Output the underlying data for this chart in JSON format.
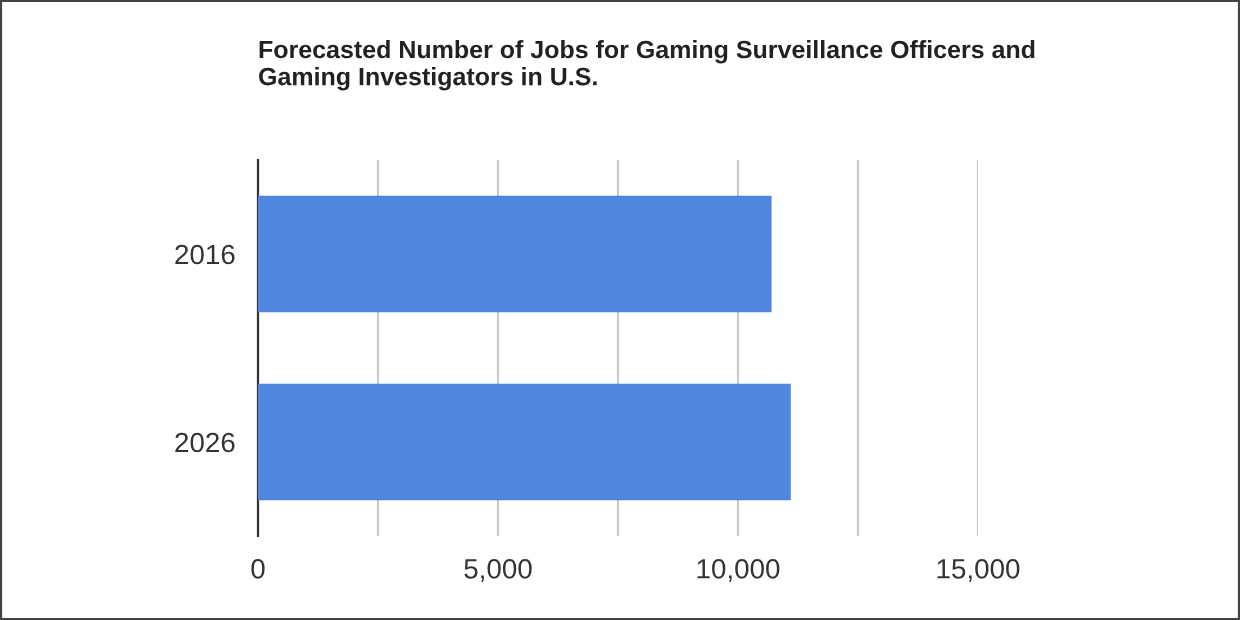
{
  "chart_data": {
    "type": "bar",
    "orientation": "horizontal",
    "title": "Forecasted Number of Jobs for Gaming Surveillance Officers and\nGaming Investigators in U.S.",
    "categories": [
      "2016",
      "2026"
    ],
    "values": [
      10700,
      11100
    ],
    "color": "#5086e0",
    "xlim": [
      0,
      15000
    ],
    "xticks": [
      0,
      {
        "value": 2500,
        "label": null
      },
      {
        "value": 5000,
        "label": "5,000"
      },
      {
        "value": 7500,
        "label": null
      },
      {
        "value": 10000,
        "label": "10,000"
      },
      {
        "value": 12500,
        "label": null
      },
      {
        "value": 15000,
        "label": "15,000"
      }
    ],
    "grid": "x",
    "legend": false
  }
}
